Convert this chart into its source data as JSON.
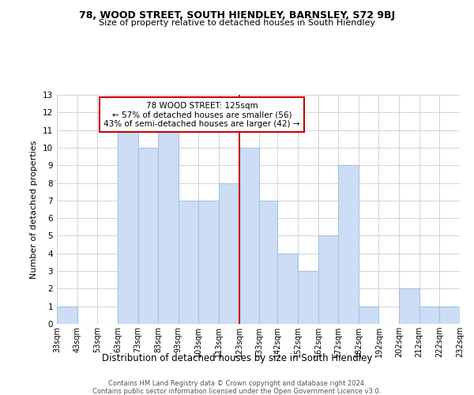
{
  "title": "78, WOOD STREET, SOUTH HIENDLEY, BARNSLEY, S72 9BJ",
  "subtitle": "Size of property relative to detached houses in South Hiendley",
  "xlabel": "Distribution of detached houses by size in South Hiendley",
  "ylabel": "Number of detached properties",
  "annotation_title": "78 WOOD STREET: 125sqm",
  "annotation_line1": "← 57% of detached houses are smaller (56)",
  "annotation_line2": "43% of semi-detached houses are larger (42) →",
  "footer_line1": "Contains HM Land Registry data © Crown copyright and database right 2024.",
  "footer_line2": "Contains public sector information licensed under the Open Government Licence v3.0.",
  "bar_color": "#ccddf5",
  "bar_edge_color": "#a8c0e0",
  "reference_line_color": "#cc0000",
  "reference_line_x": 123,
  "bin_edges": [
    33,
    43,
    53,
    63,
    73,
    83,
    93,
    103,
    113,
    123,
    133,
    142,
    152,
    162,
    172,
    182,
    192,
    202,
    212,
    222,
    232
  ],
  "bin_labels": [
    "33sqm",
    "43sqm",
    "53sqm",
    "63sqm",
    "73sqm",
    "83sqm",
    "93sqm",
    "103sqm",
    "113sqm",
    "123sqm",
    "133sqm",
    "142sqm",
    "152sqm",
    "162sqm",
    "172sqm",
    "182sqm",
    "192sqm",
    "202sqm",
    "212sqm",
    "222sqm",
    "232sqm"
  ],
  "counts": [
    1,
    0,
    0,
    11,
    10,
    11,
    7,
    7,
    8,
    10,
    7,
    4,
    3,
    5,
    9,
    1,
    0,
    2,
    1,
    1
  ],
  "ylim": [
    0,
    13
  ],
  "yticks": [
    0,
    1,
    2,
    3,
    4,
    5,
    6,
    7,
    8,
    9,
    10,
    11,
    12,
    13
  ],
  "background_color": "#ffffff",
  "grid_color": "#cccccc"
}
